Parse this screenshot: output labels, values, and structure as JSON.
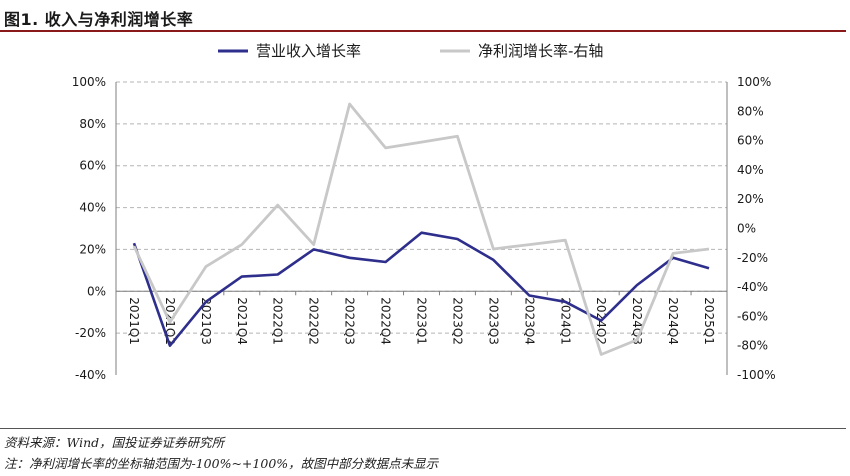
{
  "figure": {
    "title": "图1. 收入与净利润增长率",
    "source": "资料来源：Wind，国投证券证券研究所",
    "note": "注：净利润增长率的坐标轴范围为-100%~+100%，故图中部分数据点未显示"
  },
  "chart_data": {
    "type": "line",
    "categories": [
      "2021Q1",
      "2021Q2",
      "2021Q3",
      "2021Q4",
      "2022Q1",
      "2022Q2",
      "2022Q3",
      "2022Q4",
      "2023Q1",
      "2023Q2",
      "2023Q3",
      "2023Q4",
      "2024Q1",
      "2024Q2",
      "2024Q3",
      "2024Q4",
      "2025Q1"
    ],
    "series": [
      {
        "name": "营业收入增长率",
        "axis": "left",
        "color": "#2e2e8c",
        "values": [
          23,
          -26,
          -5,
          7,
          8,
          20,
          16,
          14,
          28,
          25,
          15,
          -2,
          -5,
          -14,
          3,
          16,
          11
        ]
      },
      {
        "name": "净利润增长率-右轴",
        "axis": "right",
        "color": "#c8c8c8",
        "values": [
          -12,
          -64,
          -26,
          -11,
          16,
          -11,
          85,
          55,
          59,
          63,
          -14,
          -11,
          -8,
          -86,
          -76,
          -17,
          -14
        ]
      }
    ],
    "left_axis": {
      "ylim": [
        -40,
        100
      ],
      "ticks": [
        -40,
        -20,
        0,
        20,
        40,
        60,
        80,
        100
      ]
    },
    "right_axis": {
      "ylim": [
        -100,
        100
      ],
      "ticks": [
        -100,
        -80,
        -60,
        -40,
        -20,
        0,
        20,
        40,
        60,
        80,
        100
      ]
    },
    "grid": "horizontal-dashed",
    "legend": "top-center"
  }
}
